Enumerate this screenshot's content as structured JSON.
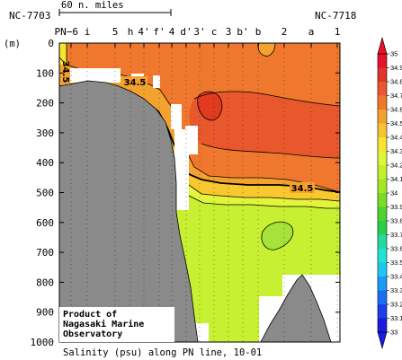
{
  "chart_data": {
    "type": "heatmap",
    "title": "Salinity (psu) along PN line, 10-01",
    "ylabel": "(m)",
    "ylim": [
      1000,
      0
    ],
    "yticks": [
      0,
      100,
      200,
      300,
      400,
      500,
      600,
      700,
      800,
      900,
      1000
    ],
    "scale_bar": "60 n. miles",
    "station_ends": {
      "left": "NC-7703",
      "right": "NC-7718"
    },
    "stations": [
      "PN−6",
      "i",
      "5",
      "h",
      "4'",
      "f'",
      "4",
      "d'",
      "3'",
      "c",
      "3",
      "b'",
      "b",
      "2",
      "a",
      "1"
    ],
    "colorbar": {
      "label": "Salinity (psu)",
      "ticks": [
        35,
        34.9,
        34.8,
        34.7,
        34.6,
        34.5,
        34.4,
        34.3,
        34.2,
        34.1,
        34,
        33.9,
        33.8,
        33.7,
        33.6,
        33.5,
        33.4,
        33.3,
        33.2,
        33.1,
        33
      ],
      "colors": {
        "34.9": "#e8102a",
        "34.8": "#e2342a",
        "34.7": "#e9572c",
        "34.6": "#f0782e",
        "34.5": "#f3a22f",
        "34.4": "#f7c42f",
        "34.3": "#f8e52e",
        "34.2": "#e1f53b",
        "34.1": "#c0f22c",
        "34.0": "#a2e822",
        "33.9": "#7bdc26",
        "33.8": "#4fd42e",
        "33.7": "#2acf4a",
        "33.6": "#25d9a0",
        "33.5": "#1fe3d7",
        "33.4": "#1ec8f4",
        "33.3": "#1a9bf2",
        "33.2": "#1a6ef0",
        "33.1": "#1a40ea",
        "33.0": "#1a1ae0"
      }
    },
    "contour_labels": [
      {
        "text": "34.5",
        "where": "upper-left, ~120 m"
      },
      {
        "text": "34.5",
        "where": "lower-right, ~470 m"
      },
      {
        "text": "34.5",
        "where": "left edge, ~50 m"
      }
    ]
  },
  "colors": {
    "seafloor": "#8a8a8a",
    "core": "#e23a1f",
    "high": "#f0782e",
    "mid": "#f3a22f",
    "upper": "#f8c82e",
    "low": "#e2f53b",
    "minimum": "#a6e33a",
    "no_data": "#ffffff"
  },
  "credit": [
    "Product of",
    "Nagasaki Marine",
    "Observatory"
  ]
}
